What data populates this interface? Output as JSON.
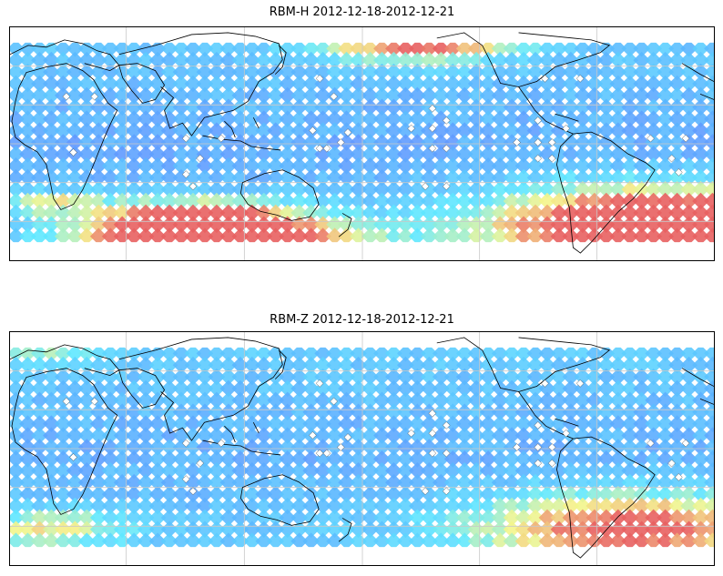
{
  "maps": [
    {
      "title": "RBM-H 2012-12-18-2012-12-21",
      "variable": "RBM-H",
      "hotspots": [
        {
          "lon": 0.26,
          "lat": -0.78,
          "r": 0.16,
          "w": 1.0
        },
        {
          "lon": 0.57,
          "lat": 1.1,
          "r": 0.15,
          "w": 0.85
        },
        {
          "lon": 0.92,
          "lat": -0.78,
          "r": 0.26,
          "w": 1.2
        },
        {
          "lon": 0.3,
          "lat": -1.05,
          "r": 0.22,
          "w": 0.8
        },
        {
          "lon": 0.05,
          "lat": -0.55,
          "r": 0.08,
          "w": 0.45
        }
      ],
      "base_level": 0.22
    },
    {
      "title": "RBM-Z 2012-12-18-2012-12-21",
      "variable": "RBM-Z",
      "hotspots": [
        {
          "lon": 0.87,
          "lat": -0.75,
          "r": 0.24,
          "w": 0.75
        },
        {
          "lon": 0.05,
          "lat": -0.75,
          "r": 0.12,
          "w": 0.45
        },
        {
          "lon": 0.05,
          "lat": 1.0,
          "r": 0.1,
          "w": 0.25
        }
      ],
      "base_level": 0.24
    }
  ],
  "colors": {
    "low": "#6a6aff",
    "mid_low": "#5ab4ff",
    "mid": "#5fe8ff",
    "mid_high": "#f5f58a",
    "high": "#e86060",
    "coast": "#000000",
    "grid": "#c8c8c8",
    "station": "#ffffff"
  },
  "stations": [
    [
      0.08,
      0.27
    ],
    [
      0.12,
      0.27
    ],
    [
      0.09,
      0.55
    ],
    [
      0.25,
      0.48
    ],
    [
      0.3,
      0.48
    ],
    [
      0.27,
      0.58
    ],
    [
      0.26,
      0.72
    ],
    [
      0.25,
      0.66
    ],
    [
      0.44,
      0.18
    ],
    [
      0.46,
      0.27
    ],
    [
      0.43,
      0.44
    ],
    [
      0.45,
      0.53
    ],
    [
      0.47,
      0.5
    ],
    [
      0.48,
      0.45
    ],
    [
      0.44,
      0.53
    ],
    [
      0.57,
      0.43
    ],
    [
      0.6,
      0.43
    ],
    [
      0.6,
      0.53
    ],
    [
      0.62,
      0.53
    ],
    [
      0.6,
      0.33
    ],
    [
      0.62,
      0.39
    ],
    [
      0.59,
      0.72
    ],
    [
      0.62,
      0.72
    ],
    [
      0.76,
      0.18
    ],
    [
      0.81,
      0.18
    ],
    [
      0.75,
      0.39
    ],
    [
      0.79,
      0.43
    ],
    [
      0.77,
      0.5
    ],
    [
      0.75,
      0.5
    ],
    [
      0.72,
      0.5
    ],
    [
      0.75,
      0.58
    ],
    [
      0.77,
      0.58
    ],
    [
      0.91,
      0.48
    ],
    [
      0.96,
      0.48
    ],
    [
      0.94,
      0.58
    ],
    [
      0.95,
      0.65
    ]
  ]
}
